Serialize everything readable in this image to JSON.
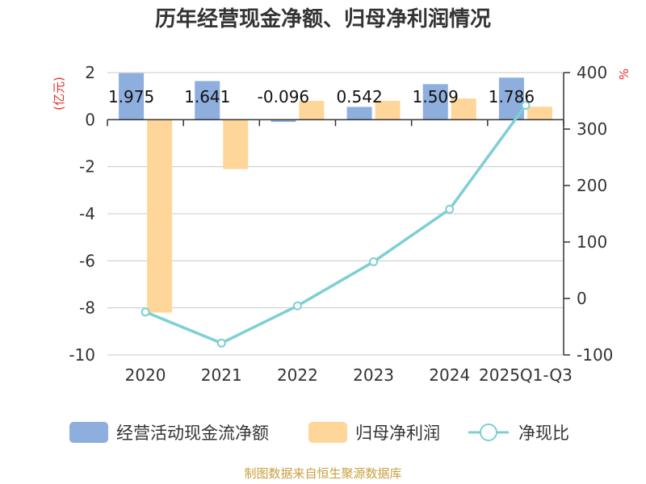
{
  "chart_data": {
    "type": "bar",
    "title": "历年经营现金净额、归母净利润情况",
    "left_unit": "(亿元)",
    "right_unit": "%",
    "categories": [
      "2020",
      "2021",
      "2022",
      "2023",
      "2024",
      "2025Q1-Q3"
    ],
    "left_ylim": [
      -10,
      2
    ],
    "left_ticks": [
      2,
      0,
      -2,
      -4,
      -6,
      -8,
      -10
    ],
    "right_ylim": [
      -100,
      400
    ],
    "right_ticks": [
      400,
      300,
      200,
      100,
      0,
      -100
    ],
    "grid": true,
    "legend_position": "bottom",
    "series": [
      {
        "name": "经营活动现金流净额",
        "kind": "bar",
        "axis": "left",
        "color": "#8eaedd",
        "values": [
          1.975,
          1.641,
          -0.096,
          0.542,
          1.509,
          1.786
        ],
        "labels": [
          "1.975",
          "1.641",
          "-0.096",
          "0.542",
          "1.509",
          "1.786"
        ]
      },
      {
        "name": "归母净利润",
        "kind": "bar",
        "axis": "left",
        "color": "#ffd699",
        "values": [
          -8.2,
          -2.1,
          0.8,
          0.8,
          0.9,
          0.55
        ]
      },
      {
        "name": "净现比",
        "kind": "line",
        "axis": "right",
        "color": "#7ecfd4",
        "values": [
          -24,
          -79,
          -13,
          65,
          158,
          342
        ]
      }
    ],
    "source": "制图数据来自恒生聚源数据库"
  }
}
